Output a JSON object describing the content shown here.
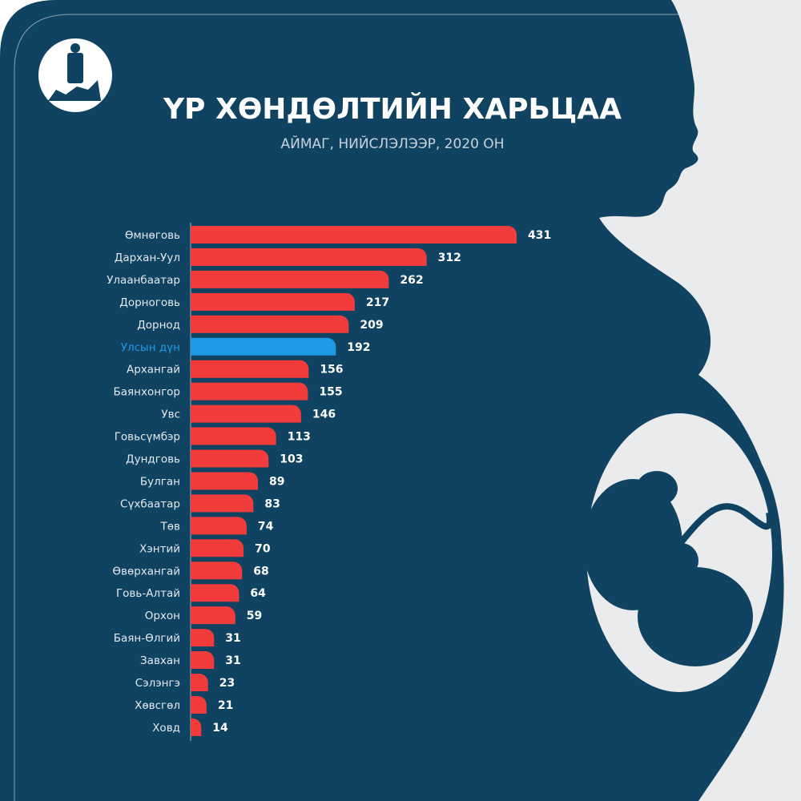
{
  "chart_data": {
    "type": "barh",
    "title": "ҮР ХӨНДӨЛТИЙН ХАРЬЦАА",
    "subtitle": "АЙМАГ, НИЙСЛЭЛЭЭР, 2020 ОН",
    "categories": [
      "Өмнөговь",
      "Дархан-Уул",
      "Улаанбаатар",
      "Дорноговь",
      "Дорнод",
      "Улсын дүн",
      "Архангай",
      "Баянхонгор",
      "Увс",
      "Говьсүмбэр",
      "Дундговь",
      "Булган",
      "Сүхбаатар",
      "Төв",
      "Хэнтий",
      "Өвөрхангай",
      "Говь-Алтай",
      "Орхон",
      "Баян-Өлгий",
      "Завхан",
      "Сэлэнгэ",
      "Хөвсгөл",
      "Ховд"
    ],
    "values": [
      431,
      312,
      262,
      217,
      209,
      192,
      156,
      155,
      146,
      113,
      103,
      89,
      83,
      74,
      70,
      68,
      64,
      59,
      31,
      31,
      23,
      21,
      14
    ],
    "colors": [
      "#f23b3b",
      "#f23b3b",
      "#f23b3b",
      "#f23b3b",
      "#f23b3b",
      "#1e9be6",
      "#f23b3b",
      "#f23b3b",
      "#f23b3b",
      "#f23b3b",
      "#f23b3b",
      "#f23b3b",
      "#f23b3b",
      "#f23b3b",
      "#f23b3b",
      "#f23b3b",
      "#f23b3b",
      "#f23b3b",
      "#f23b3b",
      "#f23b3b",
      "#f23b3b",
      "#f23b3b",
      "#f23b3b"
    ]
  }
}
